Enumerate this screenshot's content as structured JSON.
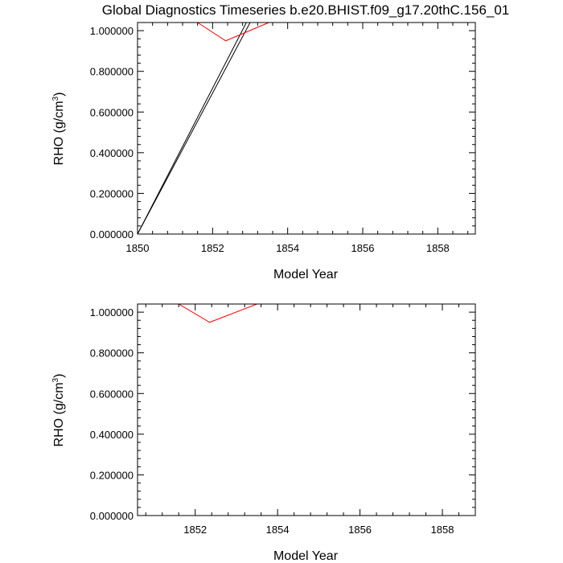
{
  "title": "Global Diagnostics Timeseries b.e20.BHIST.f09_g17.20thC.156_01",
  "colors": {
    "black_series": "#000000",
    "red_series": "#ff0000"
  },
  "chart_data": [
    {
      "type": "line",
      "xlabel": "Model Year",
      "ylabel": "RHO (g/cm",
      "ylabel_sup": "3",
      "ylabel_end": ")",
      "xlim": [
        1850,
        1859
      ],
      "ylim": [
        0,
        1.04
      ],
      "x_ticks": [
        1850,
        1852,
        1854,
        1856,
        1858
      ],
      "x_tick_labels": [
        "1850",
        "1852",
        "1854",
        "1856",
        "1858"
      ],
      "y_ticks": [
        0,
        0.2,
        0.4,
        0.6,
        0.8,
        1.0
      ],
      "y_tick_labels": [
        "0.000000",
        "0.200000",
        "0.400000",
        "0.600000",
        "0.800000",
        "1.000000"
      ],
      "series": [
        {
          "color": "#000000",
          "x": [
            1850.0,
            1852.9
          ],
          "y": [
            0.0,
            1.04
          ]
        },
        {
          "color": "#000000",
          "x": [
            1850.0,
            1853.0
          ],
          "y": [
            0.0,
            1.04
          ]
        },
        {
          "color": "#ff0000",
          "x": [
            1851.6,
            1852.35,
            1853.5
          ],
          "y": [
            1.04,
            0.95,
            1.04
          ]
        }
      ]
    },
    {
      "type": "line",
      "xlabel": "Model Year",
      "ylabel": "RHO (g/cm",
      "ylabel_sup": "3",
      "ylabel_end": ")",
      "xlim": [
        1850.6,
        1858.8
      ],
      "ylim": [
        0,
        1.04
      ],
      "x_ticks": [
        1852,
        1854,
        1856,
        1858
      ],
      "x_tick_labels": [
        "1852",
        "1854",
        "1856",
        "1858"
      ],
      "y_ticks": [
        0,
        0.2,
        0.4,
        0.6,
        0.8,
        1.0
      ],
      "y_tick_labels": [
        "0.000000",
        "0.200000",
        "0.400000",
        "0.600000",
        "0.800000",
        "1.000000"
      ],
      "series": [
        {
          "color": "#ff0000",
          "x": [
            1851.6,
            1852.35,
            1853.5
          ],
          "y": [
            1.04,
            0.95,
            1.04
          ]
        }
      ]
    }
  ]
}
